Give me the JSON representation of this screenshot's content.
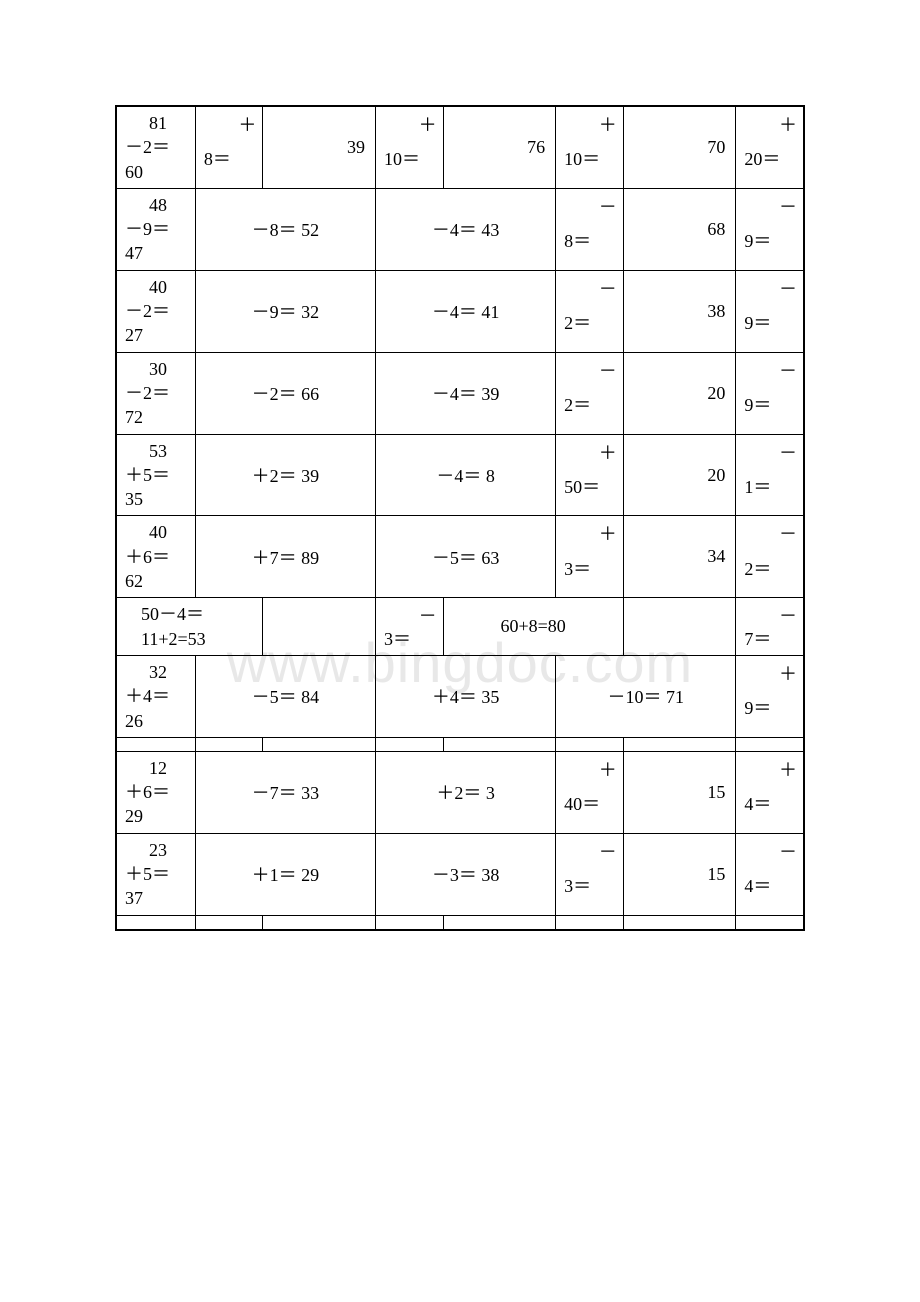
{
  "watermark": "www.bingdoc.com",
  "table": {
    "border_color": "#000000",
    "background_color": "#ffffff",
    "text_color": "#000000",
    "font_size": 18,
    "rows": [
      {
        "cells": [
          {
            "type": "col1",
            "line1": "81",
            "line2": "－2＝",
            "line3": "60"
          },
          {
            "type": "supop",
            "op": "＋",
            "base": "8＝"
          },
          {
            "type": "num",
            "val": "39"
          },
          {
            "type": "supop",
            "op": "＋",
            "base": "10＝"
          },
          {
            "type": "num",
            "val": "76"
          },
          {
            "type": "supop",
            "op": "＋",
            "base": "10＝"
          },
          {
            "type": "num",
            "val": "70"
          },
          {
            "type": "lastsup",
            "op": "＋",
            "base": "20＝"
          }
        ]
      },
      {
        "cells": [
          {
            "type": "col1",
            "line1": "48",
            "line2": "－9＝",
            "line3": "47"
          },
          {
            "type": "span2",
            "val": "－8＝ 52"
          },
          {
            "type": "span2",
            "val": "－4＝ 43"
          },
          {
            "type": "supop",
            "op": "－",
            "base": "8＝"
          },
          {
            "type": "num",
            "val": "68"
          },
          {
            "type": "lastsup",
            "op": "－",
            "base": "9＝"
          }
        ]
      },
      {
        "cells": [
          {
            "type": "col1",
            "line1": "40",
            "line2": "－2＝",
            "line3": "27"
          },
          {
            "type": "span2",
            "val": "－9＝ 32"
          },
          {
            "type": "span2",
            "val": "－4＝ 41"
          },
          {
            "type": "supop",
            "op": "－",
            "base": "2＝"
          },
          {
            "type": "num",
            "val": "38"
          },
          {
            "type": "lastsup",
            "op": "－",
            "base": "9＝"
          }
        ]
      },
      {
        "cells": [
          {
            "type": "col1",
            "line1": "30",
            "line2": "－2＝",
            "line3": "72"
          },
          {
            "type": "span2",
            "val": "－2＝ 66"
          },
          {
            "type": "span2",
            "val": "－4＝ 39"
          },
          {
            "type": "supop",
            "op": "－",
            "base": "2＝"
          },
          {
            "type": "num",
            "val": "20"
          },
          {
            "type": "lastsup",
            "op": "－",
            "base": "9＝"
          }
        ]
      },
      {
        "cells": [
          {
            "type": "col1",
            "line1": "53",
            "line2": "＋5＝",
            "line3": "35"
          },
          {
            "type": "span2",
            "val": "＋2＝ 39"
          },
          {
            "type": "span2",
            "val": "－4＝ 8"
          },
          {
            "type": "supop",
            "op": "＋",
            "base": "50＝"
          },
          {
            "type": "num",
            "val": "20"
          },
          {
            "type": "lastsup",
            "op": "－",
            "base": "1＝"
          }
        ]
      },
      {
        "cells": [
          {
            "type": "col1",
            "line1": "40",
            "line2": "＋6＝",
            "line3": "62"
          },
          {
            "type": "span2",
            "val": "＋7＝ 89"
          },
          {
            "type": "span2",
            "val": "－5＝ 63"
          },
          {
            "type": "supop",
            "op": "＋",
            "base": "3＝"
          },
          {
            "type": "num",
            "val": "34"
          },
          {
            "type": "lastsup",
            "op": "－",
            "base": "2＝"
          }
        ]
      },
      {
        "height": "short",
        "cells": [
          {
            "type": "span2plain",
            "val": "50－4＝\n11+2=53",
            "align": "center-left"
          },
          {
            "type": "empty"
          },
          {
            "type": "supop",
            "op": "－",
            "base": "3＝"
          },
          {
            "type": "span2plain",
            "val": "60+8=80",
            "align": "center"
          },
          {
            "type": "empty"
          },
          {
            "type": "lastsup",
            "op": "－",
            "base": "7＝"
          }
        ]
      },
      {
        "cells": [
          {
            "type": "col1",
            "line1": "32",
            "line2": "＋4＝",
            "line3": "26"
          },
          {
            "type": "span2",
            "val": "－5＝ 84"
          },
          {
            "type": "span2",
            "val": "＋4＝ 35"
          },
          {
            "type": "span2c",
            "val": "－10＝ 71"
          },
          {
            "type": "lastsup",
            "op": "＋",
            "base": "9＝"
          }
        ]
      },
      {
        "height": "tight",
        "cells": [
          {
            "type": "empty"
          },
          {
            "type": "empty"
          },
          {
            "type": "empty"
          },
          {
            "type": "empty"
          },
          {
            "type": "empty"
          },
          {
            "type": "empty"
          },
          {
            "type": "empty"
          },
          {
            "type": "empty"
          }
        ]
      },
      {
        "cells": [
          {
            "type": "col1",
            "line1": "12",
            "line2": "＋6＝",
            "line3": "29"
          },
          {
            "type": "span2",
            "val": "－7＝ 33"
          },
          {
            "type": "span2",
            "val": "＋2＝ 3"
          },
          {
            "type": "supop",
            "op": "＋",
            "base": "40＝"
          },
          {
            "type": "num",
            "val": "15"
          },
          {
            "type": "lastsup",
            "op": "＋",
            "base": "4＝"
          }
        ]
      },
      {
        "cells": [
          {
            "type": "col1",
            "line1": "23",
            "line2": "＋5＝",
            "line3": "37"
          },
          {
            "type": "span2",
            "val": "＋1＝ 29"
          },
          {
            "type": "span2",
            "val": "－3＝ 38"
          },
          {
            "type": "supop",
            "op": "－",
            "base": "3＝"
          },
          {
            "type": "num",
            "val": "15"
          },
          {
            "type": "lastsup",
            "op": "－",
            "base": "4＝"
          }
        ]
      },
      {
        "height": "tight",
        "cells": [
          {
            "type": "empty"
          },
          {
            "type": "empty"
          },
          {
            "type": "empty"
          },
          {
            "type": "empty"
          },
          {
            "type": "empty"
          },
          {
            "type": "empty"
          },
          {
            "type": "empty"
          },
          {
            "type": "empty"
          }
        ]
      }
    ]
  }
}
